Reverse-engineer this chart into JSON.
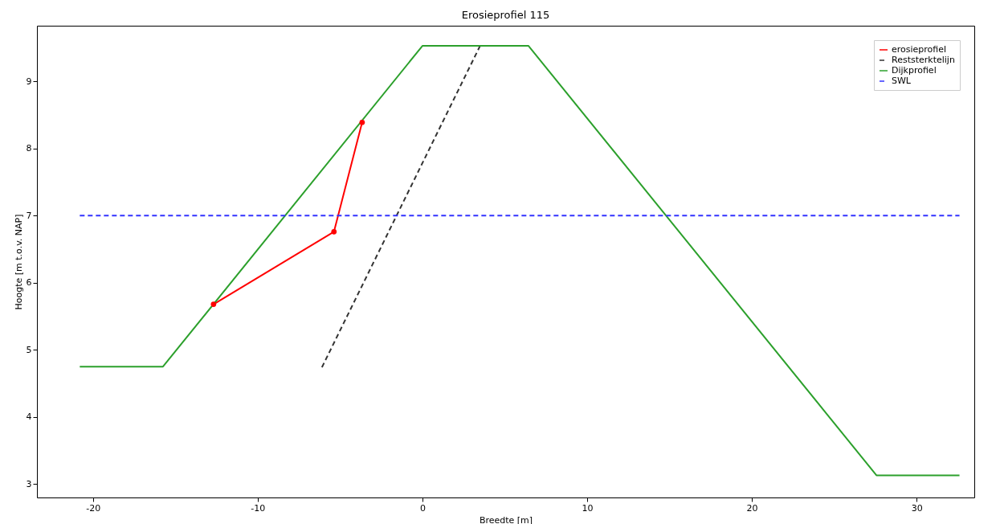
{
  "chart_data": {
    "type": "line",
    "title": "Erosieprofiel 115",
    "xlabel": "Breedte [m]",
    "ylabel": "Hoogte [m t.o.v. NAP]",
    "xlim": [
      -23.4,
      33.5
    ],
    "ylim": [
      2.8,
      9.83
    ],
    "xticks": [
      -20,
      -10,
      0,
      10,
      20,
      30
    ],
    "yticks": [
      3,
      4,
      5,
      6,
      7,
      8,
      9
    ],
    "grid": false,
    "legend": "top right",
    "series": [
      {
        "name": "erosieprofiel",
        "color": "#ff0000",
        "marker": "circle",
        "line_style": "solid",
        "x": [
          -12.68,
          -5.37,
          -3.66
        ],
        "values": [
          5.68,
          6.76,
          8.39
        ]
      },
      {
        "name": "Reststerktelijn",
        "color": "#333333",
        "marker": "none",
        "line_style": "dashed",
        "x": [
          -6.1,
          3.5
        ],
        "values": [
          4.74,
          9.53
        ]
      },
      {
        "name": "Dijkprofiel",
        "color": "#2ca02c",
        "marker": "none",
        "line_style": "solid",
        "x": [
          -20.8,
          -15.75,
          0,
          6.44,
          27.56,
          32.6
        ],
        "values": [
          4.75,
          4.75,
          9.53,
          9.53,
          3.13,
          3.13
        ]
      },
      {
        "name": "SWL",
        "color": "#3333ff",
        "marker": "none",
        "line_style": "dashed",
        "x": [
          -20.8,
          32.6
        ],
        "values": [
          7,
          7
        ]
      }
    ]
  }
}
